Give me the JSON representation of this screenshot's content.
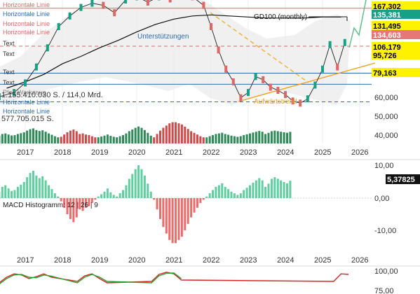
{
  "chart_data": [
    {
      "type": "line",
      "title": "",
      "ylim": [
        40,
        175
      ],
      "y_axis_ticks": [
        "60,000",
        "50,000",
        "40,000"
      ],
      "x_axis_ticks": [
        "2017",
        "2018",
        "2019",
        "2020",
        "2021",
        "2022",
        "2023",
        "2024",
        "2025",
        "2026"
      ],
      "price_labels": [
        {
          "text": "167,302",
          "bg": "#fff200",
          "fg": "#000000"
        },
        {
          "text": "135,381",
          "bg": "#16a085",
          "fg": "#ffffff"
        },
        {
          "text": "131,495",
          "bg": "#fff200",
          "fg": "#000000"
        },
        {
          "text": "134,603",
          "bg": "#e67777",
          "fg": "#ffffff"
        },
        {
          "text": "106,179",
          "bg": "#fff200",
          "fg": "#000000"
        },
        {
          "text": "95,726",
          "bg": "#fff200",
          "fg": "#000000"
        },
        {
          "text": "79,163",
          "bg": "#fff200",
          "fg": "#000000"
        }
      ],
      "horizontal_lines": [
        {
          "value": 167.3,
          "color": "#e06666",
          "style": "solid"
        },
        {
          "value": 131.5,
          "color": "#e06666",
          "style": "dashed"
        },
        {
          "value": 106.2,
          "color": "#2b6cb0",
          "style": "solid"
        },
        {
          "value": 95.7,
          "color": "#2b6cb0",
          "style": "solid"
        },
        {
          "value": 79.2,
          "color": "#2b6cb0",
          "style": "dashed"
        }
      ],
      "overlay_labels": [
        {
          "text": "Horizontale Linie",
          "color": "#e06666"
        },
        {
          "text": "Horizontale Linie",
          "color": "#2b6cb0"
        },
        {
          "text": "Horizontale Linie",
          "color": "#e06666"
        },
        {
          "text": "Horizontale Linie",
          "color": "#e06666"
        },
        {
          "text": "Text",
          "color": "#333333"
        },
        {
          "text": "Text",
          "color": "#333333"
        },
        {
          "text": "Text",
          "color": "#333333"
        },
        {
          "text": "Text",
          "color": "#333333"
        },
        {
          "text": "Pfad Werkzeug",
          "color": "#888888"
        },
        {
          "text": "Horizontale Linie",
          "color": "#2b6cb0"
        },
        {
          "text": "Horizontale Linie",
          "color": "#2b6cb0"
        }
      ],
      "annotations": [
        "GD100 (monthly)",
        "Unterstützungen",
        "Aufwärtstrend"
      ],
      "volume_labels": [
        "1.155.410.030 S. / 114,0 Mrd.",
        "577.705.015 S."
      ],
      "series": [
        {
          "name": "GD100 (monthly)",
          "x": [
            2016.5,
            2017.0,
            2017.5,
            2018.0,
            2018.5,
            2019.0,
            2019.5,
            2020.0,
            2020.5,
            2021.0,
            2021.5,
            2022.0,
            2022.5,
            2023.0,
            2023.5,
            2024.0,
            2024.5,
            2025.0,
            2025.5
          ],
          "values": [
            92,
            98,
            105,
            115,
            122,
            130,
            137,
            145,
            152,
            157,
            160,
            161,
            160,
            159,
            158,
            158,
            158,
            159,
            159
          ]
        },
        {
          "name": "",
          "x": [
            2016.3,
            2016.7,
            2017.0,
            2017.3,
            2017.6,
            2017.9,
            2018.2,
            2018.5,
            2018.8,
            2019.1,
            2019.4,
            2019.7,
            2020.0,
            2020.3,
            2020.6,
            2020.9,
            2021.2,
            2021.5,
            2021.8,
            2022.0,
            2022.2,
            2022.4,
            2022.6,
            2022.8,
            2023.0,
            2023.2,
            2023.4,
            2023.6,
            2023.8,
            2024.0,
            2024.2,
            2024.4,
            2024.6,
            2024.8,
            2025.0,
            2025.2,
            2025.4,
            2025.6
          ],
          "values": [
            84,
            88,
            97,
            112,
            130,
            150,
            160,
            168,
            172,
            170,
            163,
            175,
            178,
            173,
            178,
            176,
            180,
            178,
            170,
            150,
            128,
            110,
            98,
            83,
            88,
            103,
            100,
            93,
            90,
            86,
            80,
            78,
            82,
            95,
            110,
            133,
            112,
            135
          ]
        }
      ]
    },
    {
      "type": "bar",
      "title": "",
      "series_name": "MACD Histogramm: 12 | 26 | 9",
      "y_axis_ticks": [
        "10,00",
        "0,00",
        "-10,00"
      ],
      "x_axis_ticks": [
        "2017",
        "2018",
        "2019",
        "2020",
        "2021",
        "2022",
        "2023",
        "2024",
        "2025",
        "2026"
      ],
      "last_value_label": "5,37825",
      "ylim": [
        -15,
        12
      ],
      "x_start": 2016.3,
      "x_step": 0.0833,
      "values": [
        2.0,
        3.5,
        4.0,
        3.0,
        2.2,
        2.5,
        3.5,
        4.2,
        5.0,
        6.5,
        7.8,
        8.5,
        7.0,
        6.2,
        6.8,
        5.5,
        4.0,
        2.8,
        1.5,
        0.5,
        -1.0,
        -3.0,
        -5.0,
        -6.5,
        -7.5,
        -6.0,
        -3.5,
        -4.0,
        -3.0,
        -2.5,
        -1.5,
        -0.5,
        0.5,
        1.2,
        2.0,
        3.0,
        1.8,
        1.0,
        0.5,
        1.5,
        2.5,
        4.0,
        6.0,
        7.5,
        9.0,
        10.2,
        9.0,
        7.0,
        4.5,
        2.0,
        -0.5,
        -3.5,
        -6.5,
        -9.0,
        -11.0,
        -13.0,
        -14.0,
        -14.0,
        -13.0,
        -12.0,
        -10.0,
        -8.0,
        -6.0,
        -4.5,
        -3.0,
        -1.5,
        -0.5,
        0.5,
        1.5,
        2.5,
        3.5,
        4.0,
        4.6,
        3.5,
        2.8,
        2.0,
        1.5,
        1.0,
        1.5,
        2.5,
        3.2,
        4.0,
        4.8,
        5.5,
        6.2,
        5.5,
        3.5,
        4.5,
        6.0,
        6.5,
        6.0,
        5.5,
        5.0,
        4.6,
        5.4
      ]
    },
    {
      "type": "line",
      "title": "",
      "y_axis_ticks": [
        "100,00",
        "75,00"
      ],
      "ylim": [
        0,
        100
      ],
      "series": [
        {
          "name": "",
          "x": [
            2016.3,
            2016.5,
            2016.7,
            2016.9,
            2017.1,
            2017.3,
            2017.5,
            2017.7,
            2018.4,
            2018.6,
            2018.8,
            2019.0,
            2019.2,
            2020.4,
            2020.6,
            2020.8,
            2021.0,
            2021.2,
            2025.3,
            2025.5,
            2025.7
          ],
          "values": [
            40,
            60,
            72,
            68,
            55,
            62,
            72,
            60,
            45,
            65,
            72,
            55,
            40,
            45,
            70,
            78,
            72,
            50,
            45,
            72,
            70
          ]
        },
        {
          "name": "",
          "x": [
            2016.3,
            2016.5,
            2016.7,
            2016.9,
            2017.1,
            2017.3,
            2017.5,
            2017.7,
            2018.4,
            2018.6,
            2018.8,
            2019.0,
            2019.2,
            2020.4,
            2020.6,
            2020.8,
            2021.0,
            2021.2
          ],
          "values": [
            35,
            55,
            68,
            70,
            60,
            58,
            68,
            64,
            40,
            60,
            70,
            60,
            45,
            40,
            65,
            74,
            75,
            55
          ]
        }
      ]
    }
  ]
}
